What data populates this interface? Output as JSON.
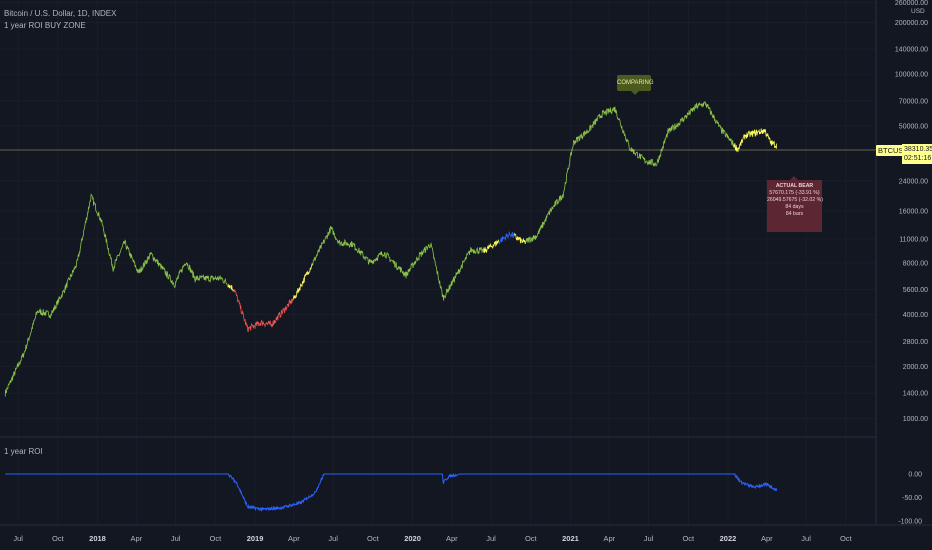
{
  "header": {
    "symbol_line": "Bitcoin / U.S. Dollar, 1D, INDEX",
    "indicator_line": "1 year ROI BUY ZONE",
    "currency": "USD"
  },
  "price_tag": {
    "symbol": "BTCUSD",
    "price": "38310.35",
    "countdown": "02:51:16"
  },
  "annotations": {
    "comparing": "COMPARING",
    "bear": {
      "title": "ACTUAL BEAR",
      "line1": "57670.175 (-33.91 %)",
      "line2": "26049.57675 (-32.02 %)",
      "days": "84 days",
      "bars": "84 bars"
    }
  },
  "colors": {
    "background": "#131722",
    "price_green": "#8bc34a",
    "price_yellow": "#ffff5c",
    "price_red": "#ef5350",
    "price_blue": "#2962ff",
    "roi_line": "#2962ff",
    "price_tag": "#ffff8c"
  },
  "chart_data": [
    {
      "type": "line",
      "title": "Bitcoin / U.S. Dollar, 1D, INDEX",
      "scale": "log",
      "y_tick_labels": [
        "260000.00",
        "200000.00",
        "140000.00",
        "100000.00",
        "70000.00",
        "50000.00",
        "24000.00",
        "16000.00",
        "11000.00",
        "8000.00",
        "5600.00",
        "4000.00",
        "2800.00",
        "2000.00",
        "1400.00",
        "1000.00"
      ],
      "x_tick_labels": [
        "Jul",
        "Oct",
        "2018",
        "Apr",
        "Jul",
        "Oct",
        "2019",
        "Apr",
        "Jul",
        "Oct",
        "2020",
        "Apr",
        "Jul",
        "Oct",
        "2021",
        "Apr",
        "Jul",
        "Oct",
        "2022",
        "Apr",
        "Jul",
        "Oct"
      ],
      "series": [
        {
          "x": [
            "2017-06-01",
            "2017-07-15",
            "2017-08-15",
            "2017-09-15",
            "2017-10-15",
            "2017-11-15",
            "2017-12-17",
            "2018-01-10",
            "2018-02-06",
            "2018-03-05",
            "2018-04-06",
            "2018-05-05",
            "2018-06-29",
            "2018-07-25",
            "2018-08-15",
            "2018-09-15",
            "2018-10-15",
            "2018-11-14",
            "2018-12-15",
            "2019-01-15",
            "2019-02-08",
            "2019-04-02",
            "2019-05-15",
            "2019-06-26",
            "2019-07-15",
            "2019-08-15",
            "2019-09-25",
            "2019-10-26",
            "2019-12-17",
            "2020-01-15",
            "2020-02-12",
            "2020-03-12",
            "2020-04-15",
            "2020-05-15",
            "2020-06-15",
            "2020-07-27",
            "2020-08-15",
            "2020-09-15",
            "2020-10-15",
            "2020-11-15",
            "2020-12-15",
            "2021-01-08",
            "2021-02-15",
            "2021-03-13",
            "2021-04-14",
            "2021-05-19",
            "2021-06-22",
            "2021-07-20",
            "2021-08-15",
            "2021-09-06",
            "2021-10-20",
            "2021-11-10",
            "2021-12-15",
            "2022-01-24",
            "2022-02-10",
            "2022-03-28",
            "2022-04-10",
            "2022-04-25"
          ],
          "values": [
            1400,
            2400,
            4200,
            4000,
            5500,
            8000,
            19500,
            14000,
            7500,
            10500,
            7000,
            9000,
            6000,
            8200,
            6500,
            6500,
            6500,
            5600,
            3300,
            3600,
            3500,
            5000,
            8000,
            12700,
            10500,
            10300,
            8000,
            9200,
            6800,
            8700,
            10300,
            5000,
            7000,
            9500,
            9400,
            11000,
            11800,
            10500,
            11500,
            16000,
            20000,
            40000,
            48000,
            58000,
            63000,
            37000,
            31500,
            30000,
            46000,
            51000,
            65000,
            67500,
            48000,
            36500,
            44000,
            47000,
            40000,
            38310
          ]
        }
      ]
    },
    {
      "type": "line",
      "title": "1 year ROI",
      "y_tick_labels": [
        "0.00",
        "-50.00",
        "-100.00"
      ],
      "series": [
        {
          "x": [
            "2017-06-01",
            "2018-10-31",
            "2018-11-20",
            "2018-12-15",
            "2019-01-20",
            "2019-03-01",
            "2019-04-15",
            "2019-05-20",
            "2019-06-10",
            "2020-03-10",
            "2020-03-12",
            "2020-03-25",
            "2020-04-20",
            "2022-01-15",
            "2022-02-01",
            "2022-03-01",
            "2022-04-01",
            "2022-04-25"
          ],
          "values": [
            0,
            0,
            -20,
            -70,
            -75,
            -72,
            -62,
            -40,
            0,
            0,
            -18,
            -5,
            0,
            0,
            -18,
            -28,
            -22,
            -35
          ]
        }
      ]
    }
  ]
}
